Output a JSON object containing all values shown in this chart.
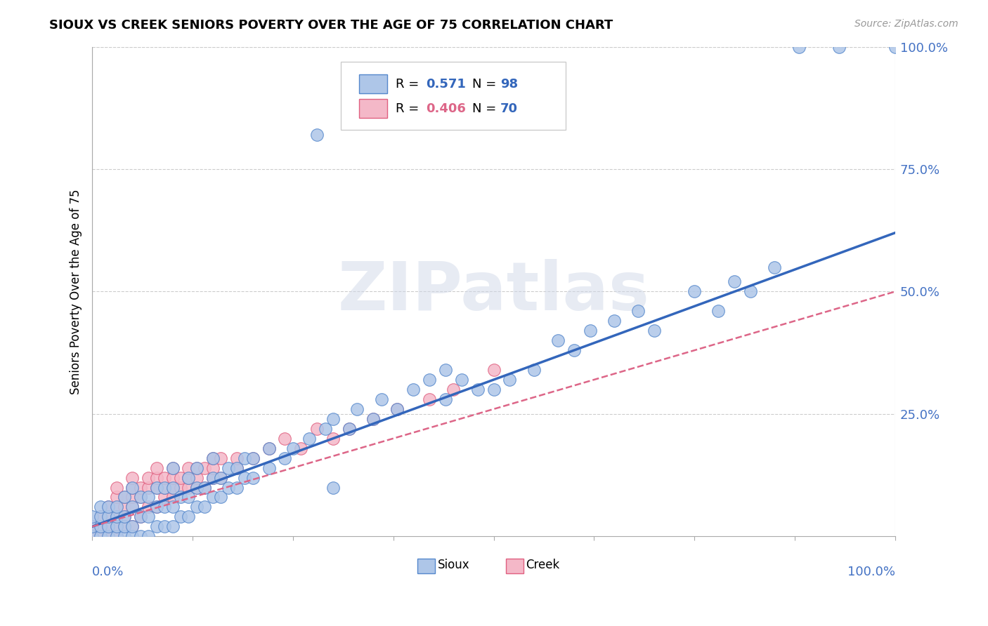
{
  "title": "SIOUX VS CREEK SENIORS POVERTY OVER THE AGE OF 75 CORRELATION CHART",
  "source_text": "Source: ZipAtlas.com",
  "ylabel": "Seniors Poverty Over the Age of 75",
  "ytick_labels": [
    "25.0%",
    "50.0%",
    "75.0%",
    "100.0%"
  ],
  "ytick_values": [
    0.25,
    0.5,
    0.75,
    1.0
  ],
  "sioux_color": "#aec6e8",
  "creek_color": "#f4b8c8",
  "sioux_edge_color": "#5588cc",
  "creek_edge_color": "#e06080",
  "sioux_line_color": "#3366bb",
  "creek_line_color": "#dd6688",
  "watermark_text": "ZIPatlas",
  "sioux_r": 0.571,
  "creek_r": 0.406,
  "sioux_n": 98,
  "creek_n": 70,
  "legend_r_color": "#000000",
  "legend_val_color_sioux": "#3366bb",
  "legend_val_color_creek": "#dd6688",
  "legend_n_val_color": "#3366bb",
  "sioux_line_intercept": 0.02,
  "sioux_line_slope": 0.6,
  "creek_line_intercept": 0.02,
  "creek_line_slope": 0.48,
  "sioux_points": [
    [
      0.0,
      0.0
    ],
    [
      0.0,
      0.02
    ],
    [
      0.0,
      0.04
    ],
    [
      0.01,
      0.0
    ],
    [
      0.01,
      0.02
    ],
    [
      0.01,
      0.04
    ],
    [
      0.01,
      0.06
    ],
    [
      0.02,
      0.0
    ],
    [
      0.02,
      0.02
    ],
    [
      0.02,
      0.04
    ],
    [
      0.02,
      0.06
    ],
    [
      0.03,
      0.0
    ],
    [
      0.03,
      0.02
    ],
    [
      0.03,
      0.04
    ],
    [
      0.03,
      0.06
    ],
    [
      0.04,
      0.0
    ],
    [
      0.04,
      0.02
    ],
    [
      0.04,
      0.04
    ],
    [
      0.04,
      0.08
    ],
    [
      0.05,
      0.0
    ],
    [
      0.05,
      0.02
    ],
    [
      0.05,
      0.06
    ],
    [
      0.05,
      0.1
    ],
    [
      0.06,
      0.0
    ],
    [
      0.06,
      0.04
    ],
    [
      0.06,
      0.08
    ],
    [
      0.07,
      0.0
    ],
    [
      0.07,
      0.04
    ],
    [
      0.07,
      0.08
    ],
    [
      0.08,
      0.02
    ],
    [
      0.08,
      0.06
    ],
    [
      0.08,
      0.1
    ],
    [
      0.09,
      0.02
    ],
    [
      0.09,
      0.06
    ],
    [
      0.09,
      0.1
    ],
    [
      0.1,
      0.02
    ],
    [
      0.1,
      0.06
    ],
    [
      0.1,
      0.1
    ],
    [
      0.1,
      0.14
    ],
    [
      0.11,
      0.04
    ],
    [
      0.11,
      0.08
    ],
    [
      0.12,
      0.04
    ],
    [
      0.12,
      0.08
    ],
    [
      0.12,
      0.12
    ],
    [
      0.13,
      0.06
    ],
    [
      0.13,
      0.1
    ],
    [
      0.13,
      0.14
    ],
    [
      0.14,
      0.06
    ],
    [
      0.14,
      0.1
    ],
    [
      0.15,
      0.08
    ],
    [
      0.15,
      0.12
    ],
    [
      0.15,
      0.16
    ],
    [
      0.16,
      0.08
    ],
    [
      0.16,
      0.12
    ],
    [
      0.17,
      0.1
    ],
    [
      0.17,
      0.14
    ],
    [
      0.18,
      0.1
    ],
    [
      0.18,
      0.14
    ],
    [
      0.19,
      0.12
    ],
    [
      0.19,
      0.16
    ],
    [
      0.2,
      0.12
    ],
    [
      0.2,
      0.16
    ],
    [
      0.22,
      0.14
    ],
    [
      0.22,
      0.18
    ],
    [
      0.24,
      0.16
    ],
    [
      0.25,
      0.18
    ],
    [
      0.27,
      0.2
    ],
    [
      0.29,
      0.22
    ],
    [
      0.3,
      0.1
    ],
    [
      0.3,
      0.24
    ],
    [
      0.32,
      0.22
    ],
    [
      0.33,
      0.26
    ],
    [
      0.35,
      0.24
    ],
    [
      0.36,
      0.28
    ],
    [
      0.38,
      0.26
    ],
    [
      0.4,
      0.3
    ],
    [
      0.42,
      0.32
    ],
    [
      0.44,
      0.28
    ],
    [
      0.44,
      0.34
    ],
    [
      0.46,
      0.32
    ],
    [
      0.48,
      0.3
    ],
    [
      0.5,
      0.3
    ],
    [
      0.52,
      0.32
    ],
    [
      0.55,
      0.34
    ],
    [
      0.58,
      0.4
    ],
    [
      0.6,
      0.38
    ],
    [
      0.62,
      0.42
    ],
    [
      0.65,
      0.44
    ],
    [
      0.68,
      0.46
    ],
    [
      0.7,
      0.42
    ],
    [
      0.75,
      0.5
    ],
    [
      0.78,
      0.46
    ],
    [
      0.8,
      0.52
    ],
    [
      0.82,
      0.5
    ],
    [
      0.85,
      0.55
    ],
    [
      0.88,
      1.0
    ],
    [
      0.93,
      1.0
    ],
    [
      1.0,
      1.0
    ],
    [
      0.28,
      0.82
    ]
  ],
  "creek_points": [
    [
      0.0,
      0.0
    ],
    [
      0.0,
      0.02
    ],
    [
      0.01,
      0.0
    ],
    [
      0.01,
      0.02
    ],
    [
      0.01,
      0.04
    ],
    [
      0.02,
      0.0
    ],
    [
      0.02,
      0.02
    ],
    [
      0.02,
      0.04
    ],
    [
      0.02,
      0.06
    ],
    [
      0.03,
      0.0
    ],
    [
      0.03,
      0.02
    ],
    [
      0.03,
      0.04
    ],
    [
      0.03,
      0.06
    ],
    [
      0.03,
      0.08
    ],
    [
      0.03,
      0.1
    ],
    [
      0.04,
      0.02
    ],
    [
      0.04,
      0.04
    ],
    [
      0.04,
      0.06
    ],
    [
      0.04,
      0.08
    ],
    [
      0.05,
      0.02
    ],
    [
      0.05,
      0.06
    ],
    [
      0.05,
      0.08
    ],
    [
      0.05,
      0.1
    ],
    [
      0.05,
      0.12
    ],
    [
      0.06,
      0.04
    ],
    [
      0.06,
      0.08
    ],
    [
      0.06,
      0.1
    ],
    [
      0.07,
      0.06
    ],
    [
      0.07,
      0.1
    ],
    [
      0.07,
      0.12
    ],
    [
      0.08,
      0.06
    ],
    [
      0.08,
      0.1
    ],
    [
      0.08,
      0.12
    ],
    [
      0.08,
      0.14
    ],
    [
      0.09,
      0.08
    ],
    [
      0.09,
      0.1
    ],
    [
      0.09,
      0.12
    ],
    [
      0.1,
      0.08
    ],
    [
      0.1,
      0.1
    ],
    [
      0.1,
      0.12
    ],
    [
      0.1,
      0.14
    ],
    [
      0.11,
      0.1
    ],
    [
      0.11,
      0.12
    ],
    [
      0.12,
      0.1
    ],
    [
      0.12,
      0.12
    ],
    [
      0.12,
      0.14
    ],
    [
      0.13,
      0.1
    ],
    [
      0.13,
      0.12
    ],
    [
      0.13,
      0.14
    ],
    [
      0.14,
      0.1
    ],
    [
      0.14,
      0.14
    ],
    [
      0.15,
      0.12
    ],
    [
      0.15,
      0.14
    ],
    [
      0.15,
      0.16
    ],
    [
      0.16,
      0.12
    ],
    [
      0.16,
      0.16
    ],
    [
      0.18,
      0.14
    ],
    [
      0.18,
      0.16
    ],
    [
      0.2,
      0.16
    ],
    [
      0.22,
      0.18
    ],
    [
      0.24,
      0.2
    ],
    [
      0.26,
      0.18
    ],
    [
      0.28,
      0.22
    ],
    [
      0.3,
      0.2
    ],
    [
      0.32,
      0.22
    ],
    [
      0.35,
      0.24
    ],
    [
      0.38,
      0.26
    ],
    [
      0.42,
      0.28
    ],
    [
      0.45,
      0.3
    ],
    [
      0.5,
      0.34
    ]
  ]
}
